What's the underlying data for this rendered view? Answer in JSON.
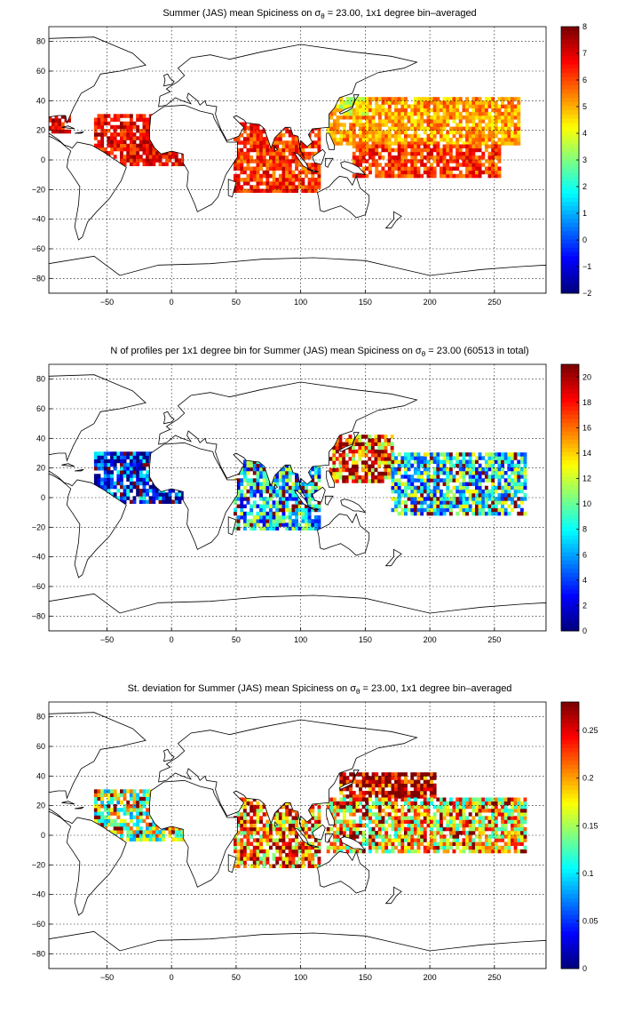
{
  "chart_data": [
    {
      "type": "heatmap",
      "title_prefix": "Summer (JAS) mean Spiciness on ",
      "title_sigma": "σ",
      "title_sub": "θ",
      "title_suffix": " = 23.00, 1x1 degree bin–averaged",
      "xlim": [
        -95,
        290
      ],
      "ylim": [
        -90,
        90
      ],
      "xticks": [
        -50,
        0,
        50,
        100,
        150,
        200,
        250
      ],
      "yticks": [
        80,
        60,
        40,
        20,
        0,
        -20,
        -40,
        -60,
        -80
      ],
      "colorbar": {
        "min": -2,
        "max": 8,
        "ticks": [
          8,
          7,
          6,
          5,
          4,
          3,
          2,
          1,
          0,
          -1,
          -2
        ]
      },
      "colormap": "jet",
      "grid": true,
      "regions": [
        {
          "region": "Pacific subtropics",
          "x": [
            120,
            270
          ],
          "y": [
            10,
            42
          ],
          "value": 5.2
        },
        {
          "region": "Equatorial Pacific",
          "x": [
            140,
            255
          ],
          "y": [
            -12,
            10
          ],
          "value": 6.2
        },
        {
          "region": "Indian Ocean",
          "x": [
            48,
            115
          ],
          "y": [
            -22,
            25
          ],
          "value": 6.3
        },
        {
          "region": "Tropical Atlantic",
          "x": [
            -60,
            8
          ],
          "y": [
            -4,
            30
          ],
          "value": 6.8
        },
        {
          "region": "Gulf of Mexico",
          "x": [
            -98,
            -80
          ],
          "y": [
            18,
            30
          ],
          "value": 7.0
        },
        {
          "region": "Kuroshio",
          "x": [
            130,
            152
          ],
          "y": [
            30,
            42
          ],
          "value": 4.0
        }
      ]
    },
    {
      "type": "heatmap",
      "title_prefix": "N of profiles per 1x1 degree bin for Summer (JAS) mean Spiciness on ",
      "title_sigma": "σ",
      "title_sub": "θ",
      "title_suffix": " = 23.00 (60513 in total)",
      "xlim": [
        -95,
        290
      ],
      "ylim": [
        -90,
        90
      ],
      "xticks": [
        -50,
        0,
        50,
        100,
        150,
        200,
        250
      ],
      "yticks": [
        80,
        60,
        40,
        20,
        0,
        -20,
        -40,
        -60,
        -80
      ],
      "colorbar": {
        "min": 0,
        "max": 21,
        "ticks": [
          20,
          18,
          16,
          14,
          12,
          10,
          8,
          6,
          4,
          2,
          0
        ]
      },
      "colormap": "jet",
      "grid": true,
      "regions": [
        {
          "region": "Western Pacific / Kuroshio",
          "x": [
            122,
            170
          ],
          "y": [
            10,
            42
          ],
          "value": 16
        },
        {
          "region": "Central Pacific",
          "x": [
            170,
            275
          ],
          "y": [
            -12,
            30
          ],
          "value": 8
        },
        {
          "region": "Indian Ocean",
          "x": [
            48,
            115
          ],
          "y": [
            -22,
            25
          ],
          "value": 7
        },
        {
          "region": "Tropical Atlantic",
          "x": [
            -60,
            8
          ],
          "y": [
            -4,
            30
          ],
          "value": 3
        }
      ]
    },
    {
      "type": "heatmap",
      "title_prefix": "St. deviation for Summer (JAS) mean Spiciness on ",
      "title_sigma": "σ",
      "title_sub": "θ",
      "title_suffix": " = 23.00, 1x1 degree bin–averaged",
      "xlim": [
        -95,
        290
      ],
      "ylim": [
        -90,
        90
      ],
      "xticks": [
        -50,
        0,
        50,
        100,
        150,
        200,
        250
      ],
      "yticks": [
        80,
        60,
        40,
        20,
        0,
        -20,
        -40,
        -60,
        -80
      ],
      "colorbar": {
        "min": 0,
        "max": 0.28,
        "ticks": [
          0.25,
          0.2,
          0.15,
          0.1,
          0.05,
          0
        ]
      },
      "colormap": "jet",
      "grid": true,
      "regions": [
        {
          "region": "Kuroshio extension",
          "x": [
            130,
            205
          ],
          "y": [
            25,
            42
          ],
          "value": 0.26
        },
        {
          "region": "Pacific",
          "x": [
            120,
            275
          ],
          "y": [
            -12,
            25
          ],
          "value": 0.18
        },
        {
          "region": "Indian Ocean",
          "x": [
            48,
            115
          ],
          "y": [
            -22,
            25
          ],
          "value": 0.2
        },
        {
          "region": "Tropical Atlantic",
          "x": [
            -60,
            8
          ],
          "y": [
            -4,
            30
          ],
          "value": 0.15
        }
      ]
    }
  ],
  "colors": {
    "background": "#ffffff",
    "frame": "#000000",
    "land": "#ffffff"
  }
}
